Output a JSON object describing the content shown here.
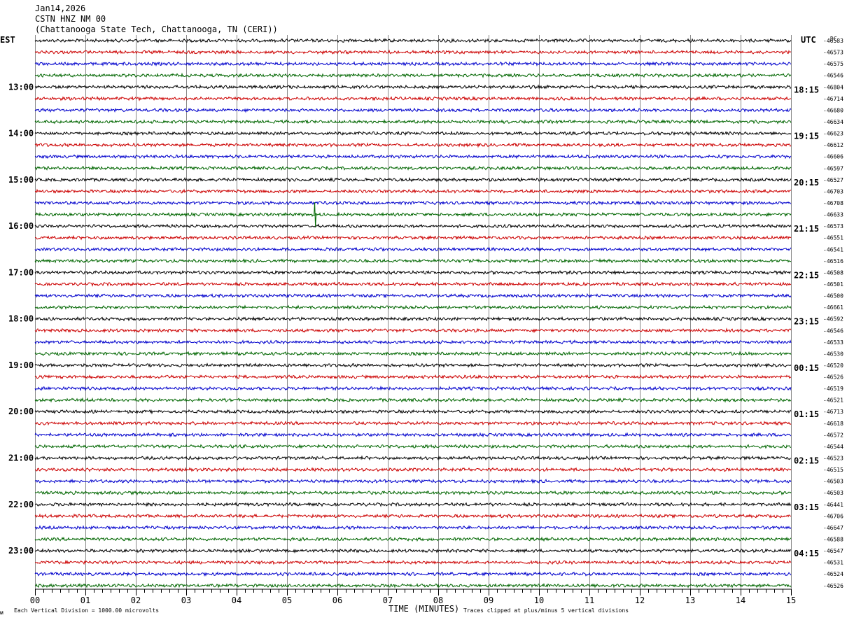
{
  "header": {
    "date": "Jan14,2026",
    "station": "CSTN HNZ NM 00",
    "location": "(Chattanooga State Tech, Chattanooga, TN (CERI))"
  },
  "left_zone_label": "EST",
  "right_zone_label": "UTC",
  "dc_label": "DC",
  "footer": {
    "scale_note": "Each Vertical Division = 1000.00 microvolts",
    "clip_note": "Traces clipped at plus/minus 5 vertical divisions",
    "corner_mark": "ᴍ"
  },
  "colors": {
    "trace_cycle": [
      "#000000",
      "#cc0000",
      "#0000cc",
      "#006600"
    ],
    "grid": "#888888"
  },
  "chart_data": {
    "type": "line",
    "xlabel": "TIME (MINUTES)",
    "xlim": [
      0,
      15
    ],
    "x_ticks": [
      "00",
      "01",
      "02",
      "03",
      "04",
      "05",
      "06",
      "07",
      "08",
      "09",
      "10",
      "11",
      "12",
      "13",
      "14",
      "15"
    ],
    "traces_per_hour": 4,
    "trace_count": 48,
    "left_hour_labels": [
      {
        "trace": 4,
        "label": "13:00"
      },
      {
        "trace": 8,
        "label": "14:00"
      },
      {
        "trace": 12,
        "label": "15:00"
      },
      {
        "trace": 16,
        "label": "16:00"
      },
      {
        "trace": 20,
        "label": "17:00"
      },
      {
        "trace": 24,
        "label": "18:00"
      },
      {
        "trace": 28,
        "label": "19:00"
      },
      {
        "trace": 32,
        "label": "20:00"
      },
      {
        "trace": 36,
        "label": "21:00"
      },
      {
        "trace": 40,
        "label": "22:00"
      },
      {
        "trace": 44,
        "label": "23:00"
      }
    ],
    "right_hour_labels": [
      {
        "trace": 4,
        "label": "18:15"
      },
      {
        "trace": 8,
        "label": "19:15"
      },
      {
        "trace": 12,
        "label": "20:15"
      },
      {
        "trace": 16,
        "label": "21:15"
      },
      {
        "trace": 20,
        "label": "22:15"
      },
      {
        "trace": 24,
        "label": "23:15"
      },
      {
        "trace": 28,
        "label": "00:15"
      },
      {
        "trace": 32,
        "label": "01:15"
      },
      {
        "trace": 36,
        "label": "02:15"
      },
      {
        "trace": 40,
        "label": "03:15"
      },
      {
        "trace": 44,
        "label": "04:15"
      }
    ],
    "dc_offsets": [
      "-46583",
      "-46573",
      "-46575",
      "-46546",
      "-46804",
      "-46714",
      "-46680",
      "-46634",
      "-46623",
      "-46612",
      "-46606",
      "-46597",
      "-46527",
      "-46703",
      "-46708",
      "-46633",
      "-46573",
      "-46551",
      "-46541",
      "-46516",
      "-46508",
      "-46501",
      "-46500",
      "-46661",
      "-46592",
      "-46546",
      "-46533",
      "-46530",
      "-46520",
      "-46526",
      "-46519",
      "-46521",
      "-46713",
      "-46618",
      "-46572",
      "-46544",
      "-46523",
      "-46515",
      "-46503",
      "-46503",
      "-46441",
      "-46706",
      "-46647",
      "-46588",
      "-46547",
      "-46531",
      "-46524",
      "-46526"
    ],
    "events": [
      {
        "trace": 15,
        "minute": 5.55,
        "amplitude": 1.4
      }
    ]
  }
}
